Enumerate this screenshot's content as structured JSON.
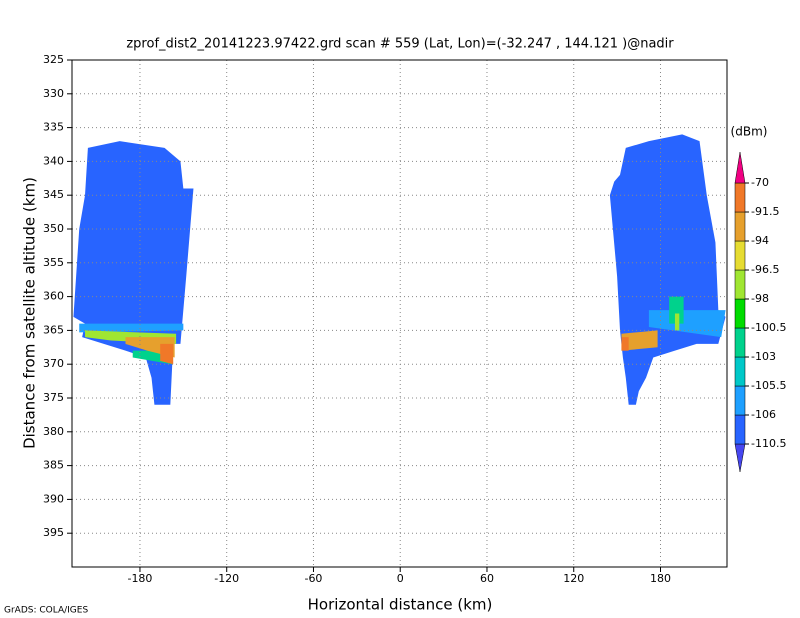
{
  "chart_data": {
    "type": "curtain",
    "title": "zprof_dist2_20141223.97422.grd  scan # 559  (Lat, Lon)=(-32.247 , 144.121 )@nadir",
    "x_label": "Horizontal distance (km)",
    "y_label": "Distance from satellite altitude (km)",
    "footer": "GrADS: COLA/IGES",
    "xlim": [
      -227,
      226
    ],
    "xticks": [
      -180,
      -120,
      -60,
      0,
      60,
      120,
      180
    ],
    "ylim": [
      400,
      325
    ],
    "yticks": [
      325,
      330,
      335,
      340,
      345,
      350,
      355,
      360,
      365,
      370,
      375,
      380,
      385,
      390,
      395
    ],
    "grid": true,
    "colorbar": {
      "unit": "(dBm)",
      "levels": [
        -110.5,
        -106,
        -105.5,
        -103,
        -100.5,
        -98,
        -96.5,
        -94,
        -91.5,
        -70
      ],
      "colors": [
        "#4646f0",
        "#2864ff",
        "#1ea0ff",
        "#00c8c8",
        "#00d28c",
        "#00dc00",
        "#a0e632",
        "#e6dc32",
        "#e6a02d",
        "#f07828",
        "#f00082"
      ]
    },
    "regions": [
      {
        "value": -110.5,
        "x": [
          -216,
          -194,
          -163,
          -152,
          -150,
          -143,
          -148,
          -152,
          -157,
          -159,
          -170,
          -172,
          -176,
          -190,
          -205,
          -220,
          -218,
          -226,
          -222,
          -218
        ],
        "y": [
          338,
          337,
          338,
          340,
          344,
          344,
          357,
          367,
          367,
          376,
          376,
          372,
          369,
          368,
          367,
          366,
          364,
          363,
          350,
          345
        ]
      },
      {
        "value": -106,
        "x": [
          -222,
          -150,
          -150,
          -222
        ],
        "y": [
          364,
          364,
          365,
          365.3
        ]
      },
      {
        "value": -98,
        "x": [
          -218,
          -155,
          -155,
          -200,
          -218
        ],
        "y": [
          365,
          365.5,
          367,
          366.5,
          366
        ]
      },
      {
        "value": -103,
        "x": [
          -185,
          -158,
          -158,
          -185
        ],
        "y": [
          368,
          368,
          370,
          369
        ]
      },
      {
        "value": -94,
        "x": [
          -190,
          -156,
          -156,
          -175,
          -190
        ],
        "y": [
          366,
          366,
          369,
          368,
          367
        ]
      },
      {
        "value": -91.5,
        "x": [
          -166,
          -157,
          -157,
          -166
        ],
        "y": [
          367,
          367,
          370,
          369.5
        ]
      },
      {
        "value": -110.5,
        "x": [
          156,
          172,
          195,
          207,
          212,
          218,
          220,
          225,
          220,
          205,
          190,
          175,
          170,
          165,
          163,
          158,
          156,
          154,
          152,
          150,
          145,
          148,
          152
        ],
        "y": [
          338,
          337,
          336,
          337,
          345,
          352,
          362,
          363,
          367,
          367,
          368,
          369,
          372,
          374,
          376,
          376,
          372,
          369,
          365,
          357,
          345,
          343,
          342
        ]
      },
      {
        "value": -106,
        "x": [
          172,
          225,
          222,
          172
        ],
        "y": [
          362,
          362,
          366,
          364.5
        ]
      },
      {
        "value": -103,
        "x": [
          186,
          196,
          196,
          186
        ],
        "y": [
          360,
          360,
          364,
          364
        ]
      },
      {
        "value": -98,
        "x": [
          190,
          193,
          193,
          190
        ],
        "y": [
          362.5,
          362.5,
          365,
          365
        ]
      },
      {
        "value": -94,
        "x": [
          153,
          178,
          178,
          153
        ],
        "y": [
          365.5,
          365,
          367.5,
          368
        ]
      },
      {
        "value": -91.5,
        "x": [
          153,
          158,
          158,
          153
        ],
        "y": [
          366,
          366,
          368,
          368
        ]
      }
    ]
  }
}
